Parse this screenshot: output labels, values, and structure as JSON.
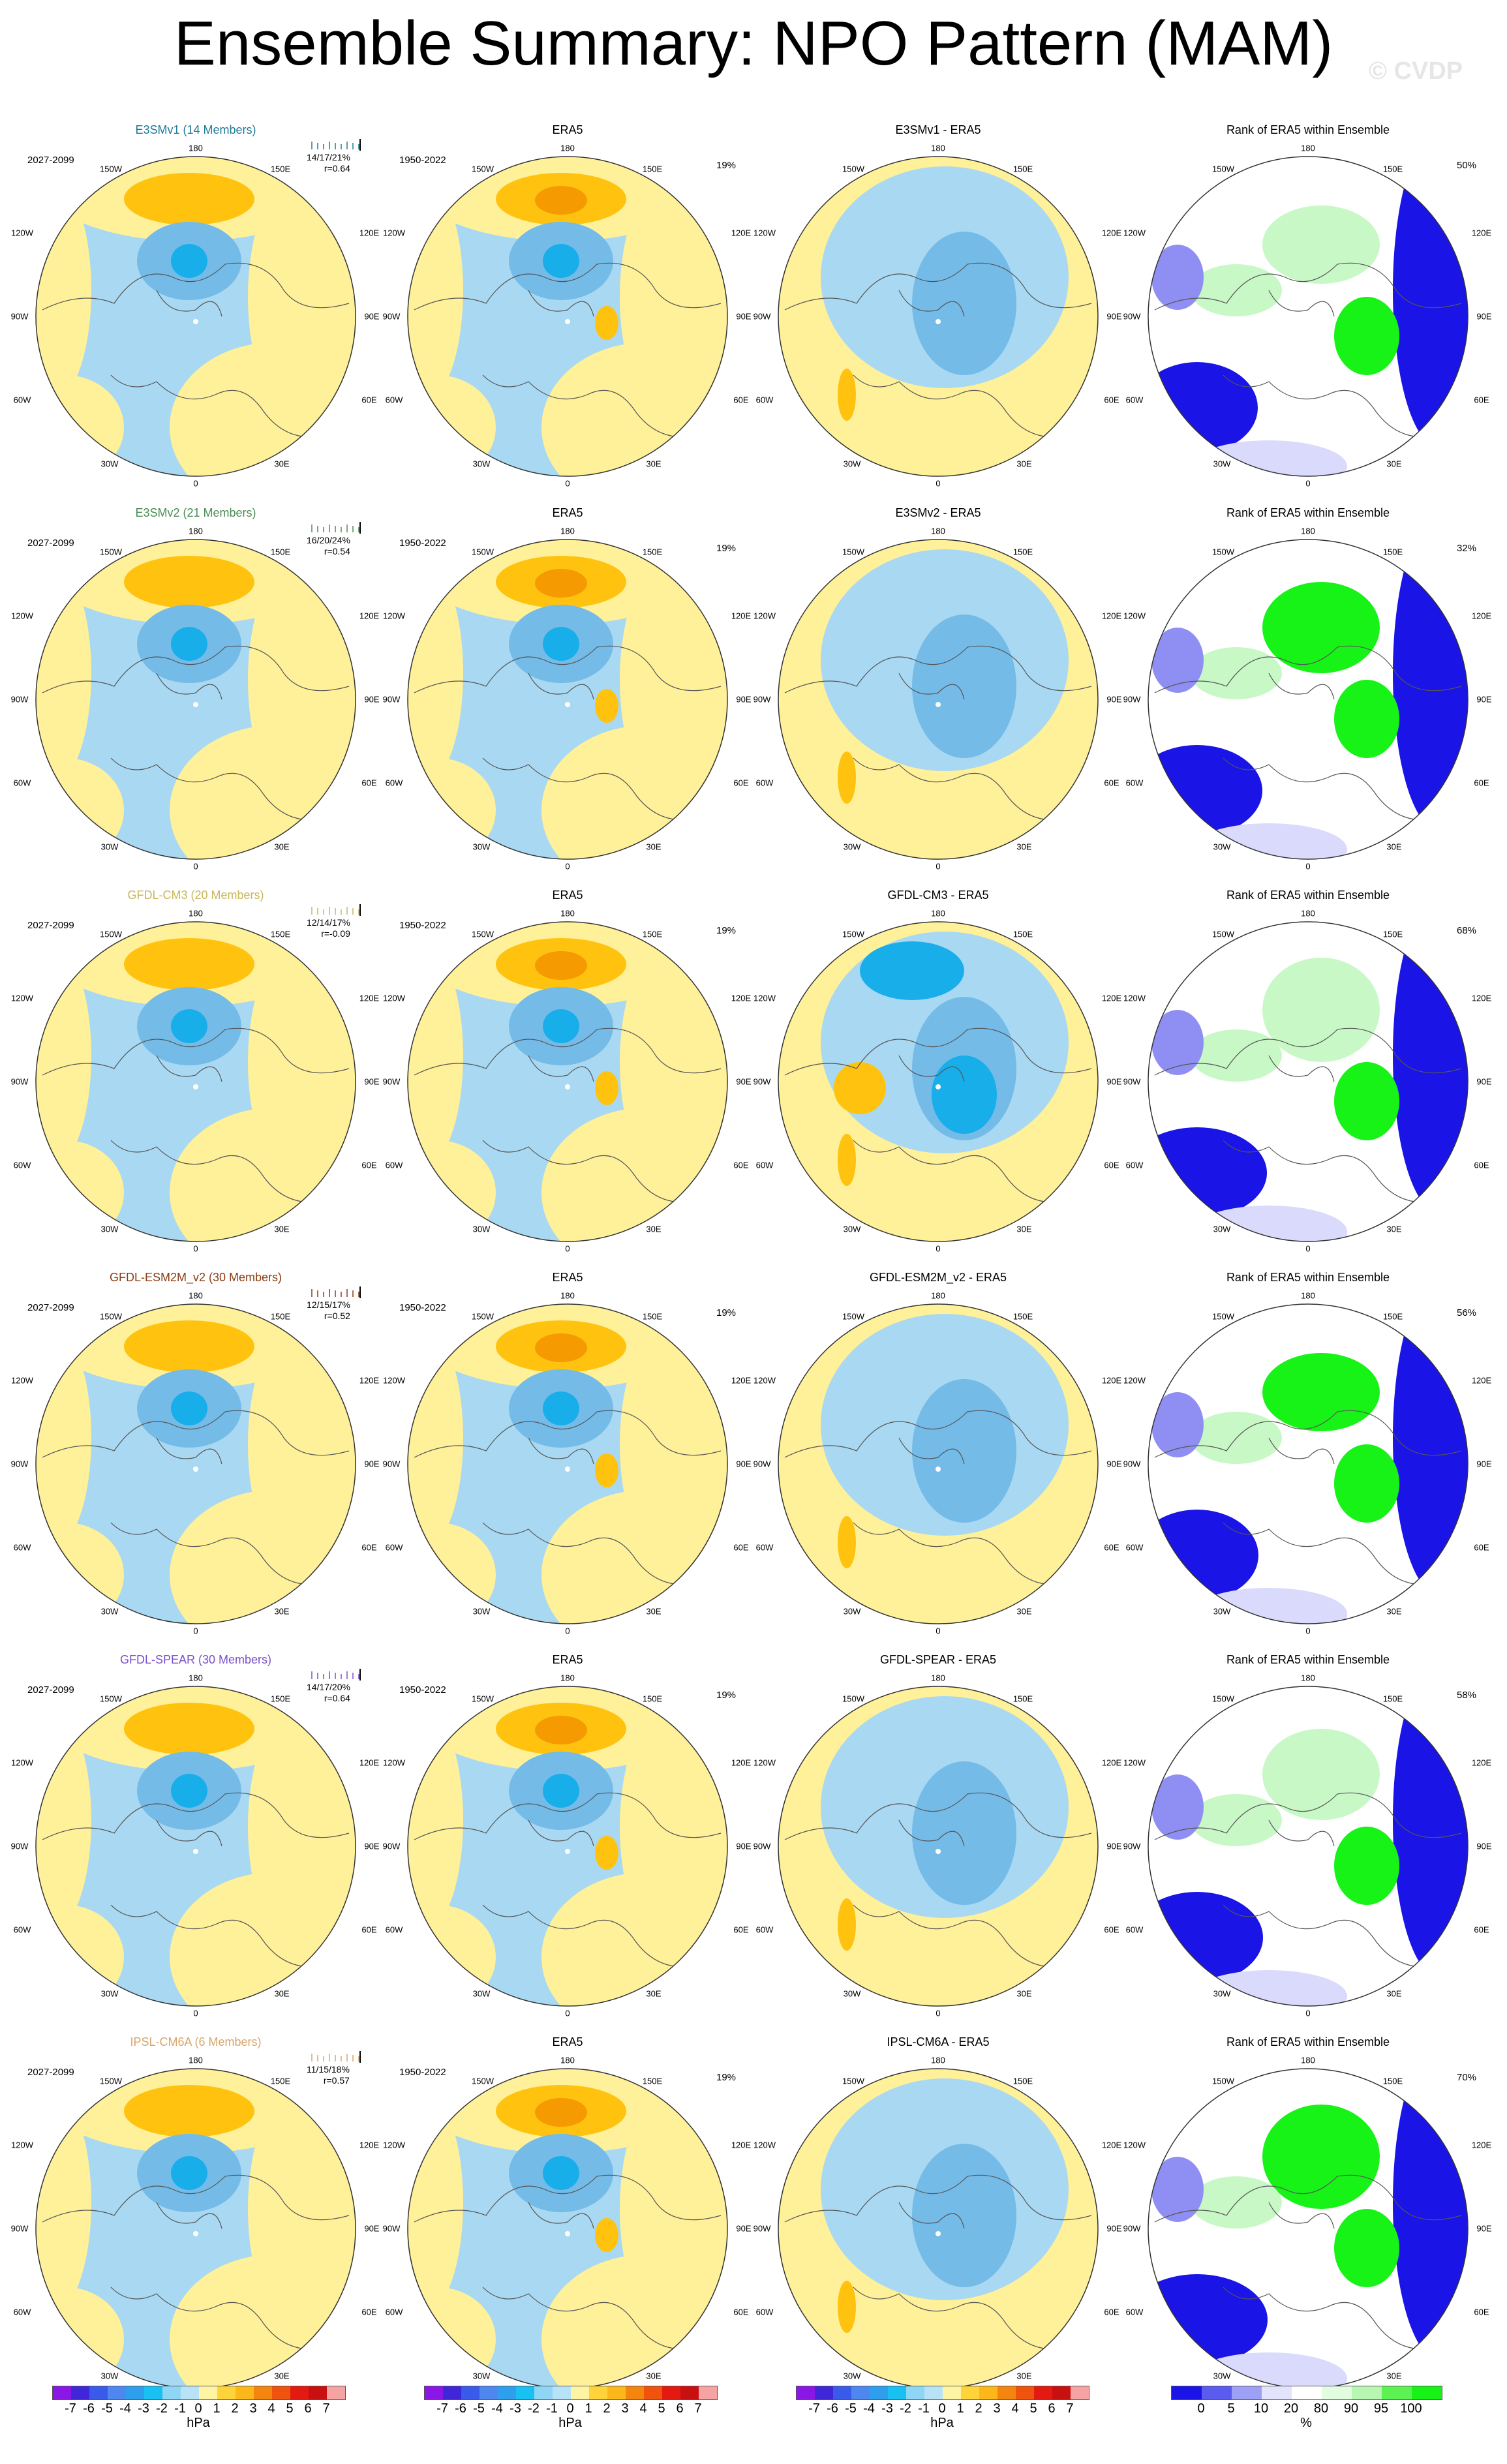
{
  "title": "Ensemble Summary: NPO Pattern (MAM)",
  "watermark": "© CVDP",
  "colors": {
    "pos1": "#fff09a",
    "pos2": "#ffc30f",
    "pos3": "#f59a00",
    "neg1": "#a9d8f2",
    "neg2": "#74bbe8",
    "neg3": "#18aeea",
    "rank_low": "#1a14e6",
    "rank_mid": "#8f8ff3",
    "rank_light": "#d9dafc",
    "rank_high": "#17f217",
    "rank_highlight": "#c9f8c7"
  },
  "colorbar_hpa": {
    "tick_labels": [
      "-7",
      "-6",
      "-5",
      "-4",
      "-3",
      "-2",
      "-1",
      "0",
      "1",
      "2",
      "3",
      "4",
      "5",
      "6",
      "7"
    ],
    "unit": "hPa",
    "colors": [
      "#8a17e6",
      "#3f27d9",
      "#3a5be9",
      "#4f87f0",
      "#2d9fec",
      "#18c1f2",
      "#8fd6f6",
      "#b8e3f7",
      "#fff4a4",
      "#ffd43a",
      "#fcb81b",
      "#f4860f",
      "#ef530d",
      "#e21a12",
      "#c91010",
      "#f5a3a3"
    ]
  },
  "colorbar_rank": {
    "tick_labels": [
      "0",
      "5",
      "10",
      "20",
      "80",
      "90",
      "95",
      "100"
    ],
    "unit": "%",
    "colors": [
      "#1a14e6",
      "#5a5bef",
      "#9ea0f5",
      "#e3e4fc",
      "#ffffff",
      "#e2fce0",
      "#b7f7b2",
      "#5cf254",
      "#17f217"
    ]
  },
  "map_labels": {
    "top": "180",
    "nw": "150W",
    "ne": "150E",
    "l1": "120W",
    "r1": "120E",
    "l2": "90W",
    "r2": "90E",
    "l3": "60W",
    "r3": "60E",
    "sw": "30W",
    "se": "30E",
    "bottom": "0"
  },
  "rows": [
    {
      "model": "E3SMv1 (14 Members)",
      "model_color": "#1f7a96",
      "period": "2027-2099",
      "stats": "14/17/21%",
      "r": "r=0.64",
      "obs_title": "ERA5",
      "obs_period": "1950-2022",
      "obs_pct": "19%",
      "diff_title": "E3SMv1 - ERA5",
      "rank_title": "Rank of ERA5 within Ensemble",
      "rank_pct": "50%"
    },
    {
      "model": "E3SMv2 (21 Members)",
      "model_color": "#4a8c54",
      "period": "2027-2099",
      "stats": "16/20/24%",
      "r": "r=0.54",
      "obs_title": "ERA5",
      "obs_period": "1950-2022",
      "obs_pct": "19%",
      "diff_title": "E3SMv2 - ERA5",
      "rank_title": "Rank of ERA5 within Ensemble",
      "rank_pct": "32%"
    },
    {
      "model": "GFDL-CM3 (20 Members)",
      "model_color": "#c9b75a",
      "period": "2027-2099",
      "stats": "12/14/17%",
      "r": "r=-0.09",
      "obs_title": "ERA5",
      "obs_period": "1950-2022",
      "obs_pct": "19%",
      "diff_title": "GFDL-CM3 - ERA5",
      "rank_title": "Rank of ERA5 within Ensemble",
      "rank_pct": "68%"
    },
    {
      "model": "GFDL-ESM2M_v2 (30 Members)",
      "model_color": "#8a3b12",
      "period": "2027-2099",
      "stats": "12/15/17%",
      "r": "r=0.52",
      "obs_title": "ERA5",
      "obs_period": "1950-2022",
      "obs_pct": "19%",
      "diff_title": "GFDL-ESM2M_v2 - ERA5",
      "rank_title": "Rank of ERA5 within Ensemble",
      "rank_pct": "56%"
    },
    {
      "model": "GFDL-SPEAR (30 Members)",
      "model_color": "#7a4fc9",
      "period": "2027-2099",
      "stats": "14/17/20%",
      "r": "r=0.64",
      "obs_title": "ERA5",
      "obs_period": "1950-2022",
      "obs_pct": "19%",
      "diff_title": "GFDL-SPEAR - ERA5",
      "rank_title": "Rank of ERA5 within Ensemble",
      "rank_pct": "58%"
    },
    {
      "model": "IPSL-CM6A (6 Members)",
      "model_color": "#d9a46a",
      "period": "2027-2099",
      "stats": "11/15/18%",
      "r": "r=0.57",
      "obs_title": "ERA5",
      "obs_period": "1950-2022",
      "obs_pct": "19%",
      "diff_title": "IPSL-CM6A - ERA5",
      "rank_title": "Rank of ERA5 within Ensemble",
      "rank_pct": "70%"
    }
  ],
  "chart_data": {
    "type": "heatmap",
    "title": "Ensemble Summary: NPO Pattern (MAM)",
    "projection": "north polar stereographic",
    "columns": [
      "model ensemble mean pattern",
      "ERA5 observed pattern",
      "model minus ERA5 difference",
      "rank of ERA5 within ensemble"
    ],
    "contour_levels_hpa": [
      -7,
      -6,
      -5,
      -4,
      -3,
      -2,
      -1,
      0,
      1,
      2,
      3,
      4,
      5,
      6,
      7
    ],
    "rank_levels_percent": [
      0,
      5,
      10,
      20,
      80,
      90,
      95,
      100
    ],
    "panels_per_row": 4,
    "rows": 6
  }
}
